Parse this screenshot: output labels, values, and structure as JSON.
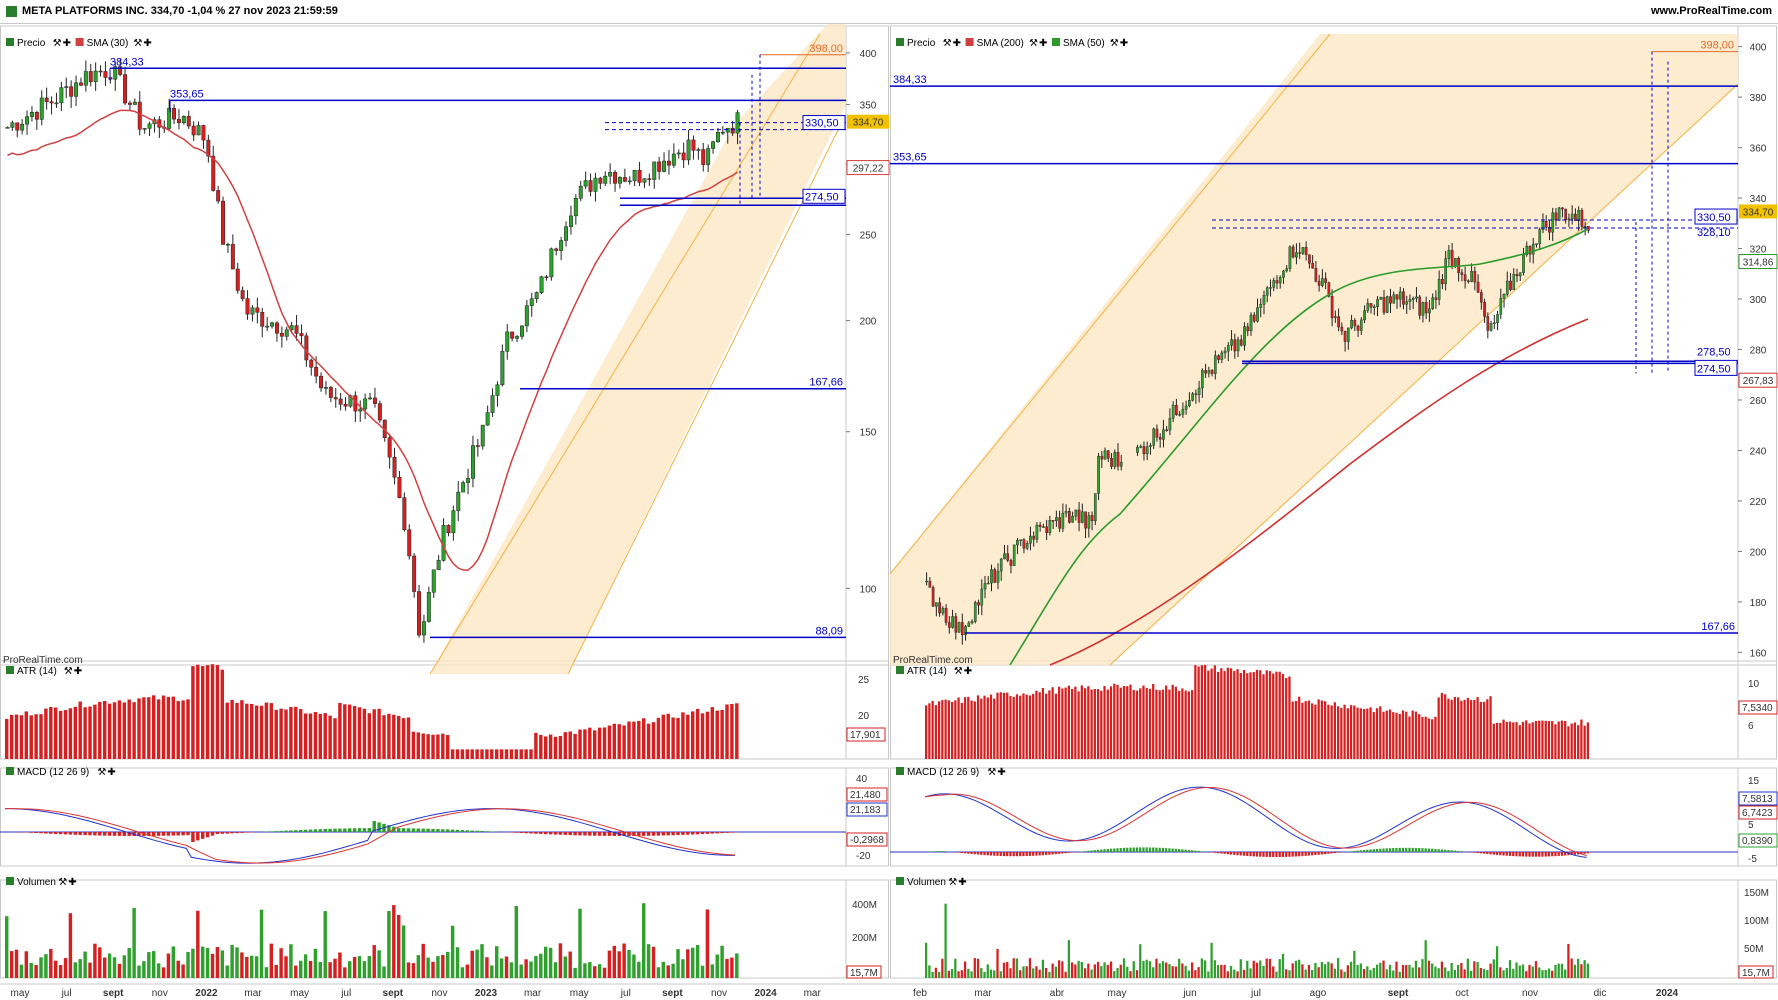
{
  "title_bar": {
    "symbol_info": "META PLATFORMS INC. 334,70 -1,04 % 27 nov 2023 21:59:59",
    "site": "www.ProRealTime.com"
  },
  "watermark": "ProRealTime.com",
  "colors": {
    "up": "#2ea02e",
    "down": "#d42020",
    "level": "#0000c8",
    "target": "#e06a2a",
    "channel_fill": "#fde7c4",
    "channel_line": "#f5b041",
    "sma30": "#d04040",
    "sma200": "#d03030",
    "sma50": "#2a9a2a",
    "price_tag": "#f2c200"
  },
  "left": {
    "headers": {
      "price": [
        "Precio",
        "SMA (30)"
      ],
      "atr": "ATR (14)",
      "macd": "MACD (12 26 9)",
      "vol": "Volumen"
    },
    "price_ticks": [
      "400",
      "350",
      "300",
      "250",
      "200",
      "150",
      "100"
    ],
    "levels": [
      {
        "label": "384,33",
        "value": 384.33
      },
      {
        "label": "353,65",
        "value": 353.65
      },
      {
        "label": "167,66",
        "value": 167.66
      },
      {
        "label": "88,09",
        "value": 88.09
      }
    ],
    "boxes": {
      "upper": "330,50",
      "lower": "274,50",
      "target": "398,00"
    },
    "tags": {
      "price": "334,70",
      "sma": "297,22"
    },
    "atr_ticks": [
      "25",
      "20"
    ],
    "atr_tag": "17,901",
    "macd_ticks": [
      "40",
      "-20"
    ],
    "macd_tags": [
      "21,480",
      "21,183",
      "-0,2968"
    ],
    "vol_ticks": [
      "400M",
      "200M"
    ],
    "vol_tag": "15,7M",
    "x_labels": [
      "may",
      "jul",
      "sept",
      "nov",
      "2022",
      "mar",
      "may",
      "jul",
      "sept",
      "nov",
      "2023",
      "mar",
      "may",
      "jul",
      "sept",
      "nov",
      "2024",
      "mar"
    ]
  },
  "right": {
    "headers": {
      "price": [
        "Precio",
        "SMA (200)",
        "SMA (50)"
      ],
      "atr": "ATR (14)",
      "macd": "MACD (12 26 9)",
      "vol": "Volumen"
    },
    "price_ticks": [
      "400",
      "380",
      "360",
      "340",
      "320",
      "300",
      "280",
      "260",
      "240",
      "220",
      "200",
      "180",
      "160"
    ],
    "levels": [
      {
        "label": "384,33",
        "value": 384.33
      },
      {
        "label": "353,65",
        "value": 353.65
      },
      {
        "label": "167,66",
        "value": 167.66
      }
    ],
    "boxes": {
      "upper": "330,50",
      "upper_hidden": "328,10",
      "lower": "274,50",
      "lower_hidden": "278,50",
      "target": "398,00"
    },
    "tags": {
      "price": "334,70",
      "sma50": "314,86",
      "sma200": "267,83"
    },
    "atr_ticks": [
      "10",
      "6"
    ],
    "atr_tag": "7,5340",
    "macd_ticks": [
      "15",
      "10",
      "5",
      "-5"
    ],
    "macd_tags": [
      "7,5813",
      "6,7423",
      "0,8390"
    ],
    "vol_ticks": [
      "150M",
      "100M",
      "50M"
    ],
    "vol_tag": "15,7M",
    "x_labels": [
      "feb",
      "mar",
      "abr",
      "may",
      "jun",
      "jul",
      "ago",
      "sept",
      "oct",
      "nov",
      "dic",
      "2024"
    ]
  }
}
